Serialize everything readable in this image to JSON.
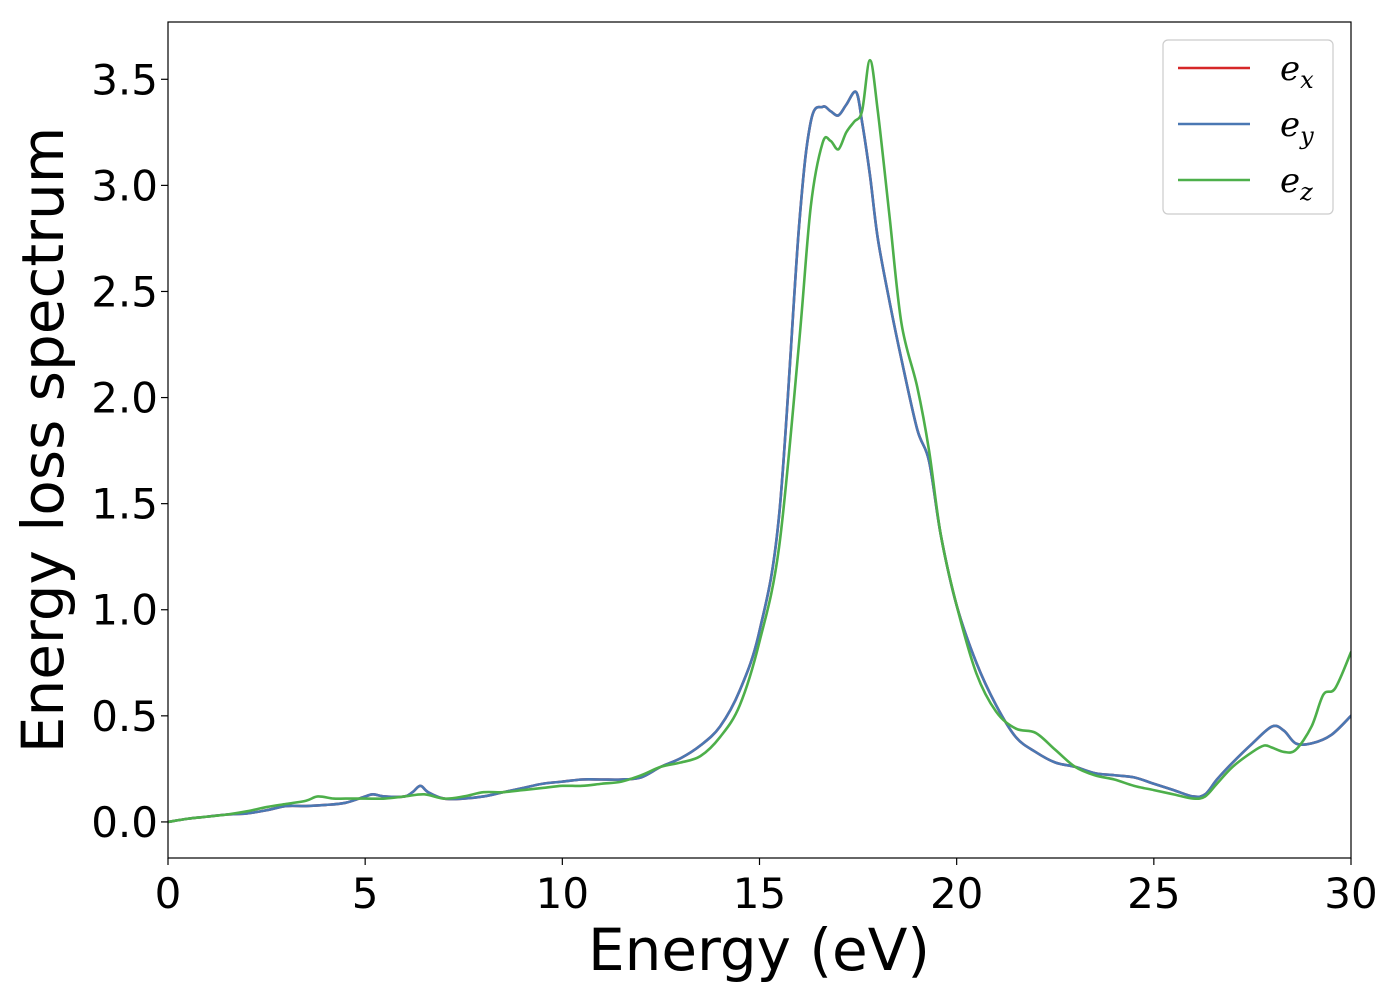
{
  "chart_data": {
    "type": "line",
    "title": "",
    "xlabel": "Energy (eV)",
    "ylabel": "Energy loss spectrum",
    "xlim": [
      0,
      30
    ],
    "ylim": [
      -0.17,
      3.77
    ],
    "xticks": [
      0,
      5,
      10,
      15,
      20,
      25,
      30
    ],
    "xtick_labels": [
      "0",
      "5",
      "10",
      "15",
      "20",
      "25",
      "30"
    ],
    "yticks": [
      0.0,
      0.5,
      1.0,
      1.5,
      2.0,
      2.5,
      3.0,
      3.5
    ],
    "ytick_labels": [
      "0.0",
      "0.5",
      "1.0",
      "1.5",
      "2.0",
      "2.5",
      "3.0",
      "3.5"
    ],
    "grid": false,
    "legend_position": "top-right",
    "series": [
      {
        "name": "e_x",
        "legend_base": "e",
        "legend_sub": "x",
        "color": "#d62728",
        "x": [
          0,
          0.5,
          1,
          1.5,
          2,
          2.5,
          3,
          3.5,
          4,
          4.5,
          5,
          5.2,
          5.5,
          6,
          6.2,
          6.4,
          6.6,
          7,
          7.5,
          8,
          8.5,
          9,
          9.5,
          10,
          10.5,
          11,
          11.5,
          12,
          12.5,
          13,
          13.5,
          14,
          14.5,
          15,
          15.5,
          16,
          16.3,
          16.6,
          16.8,
          17,
          17.2,
          17.45,
          17.6,
          17.8,
          18,
          18.3,
          18.6,
          19,
          19.3,
          19.6,
          20,
          20.5,
          21,
          21.5,
          22,
          22.5,
          23,
          23.5,
          24,
          24.5,
          25,
          25.5,
          26,
          26.3,
          26.6,
          27,
          27.5,
          28,
          28.3,
          28.6,
          29,
          29.5,
          30
        ],
        "y": [
          0.0,
          0.015,
          0.025,
          0.035,
          0.04,
          0.055,
          0.075,
          0.075,
          0.08,
          0.09,
          0.12,
          0.13,
          0.12,
          0.12,
          0.14,
          0.17,
          0.14,
          0.11,
          0.11,
          0.12,
          0.14,
          0.16,
          0.18,
          0.19,
          0.2,
          0.2,
          0.2,
          0.21,
          0.26,
          0.3,
          0.36,
          0.45,
          0.62,
          0.9,
          1.45,
          2.8,
          3.3,
          3.37,
          3.35,
          3.33,
          3.38,
          3.44,
          3.3,
          3.05,
          2.75,
          2.45,
          2.18,
          1.85,
          1.7,
          1.35,
          1.02,
          0.75,
          0.55,
          0.4,
          0.33,
          0.28,
          0.26,
          0.23,
          0.22,
          0.21,
          0.18,
          0.15,
          0.12,
          0.13,
          0.2,
          0.28,
          0.37,
          0.45,
          0.43,
          0.37,
          0.37,
          0.41,
          0.5
        ]
      },
      {
        "name": "e_y",
        "legend_base": "e",
        "legend_sub": "y",
        "color": "#4a78b3",
        "x": [
          0,
          0.5,
          1,
          1.5,
          2,
          2.5,
          3,
          3.5,
          4,
          4.5,
          5,
          5.2,
          5.5,
          6,
          6.2,
          6.4,
          6.6,
          7,
          7.5,
          8,
          8.5,
          9,
          9.5,
          10,
          10.5,
          11,
          11.5,
          12,
          12.5,
          13,
          13.5,
          14,
          14.5,
          15,
          15.5,
          16,
          16.3,
          16.6,
          16.8,
          17,
          17.2,
          17.45,
          17.6,
          17.8,
          18,
          18.3,
          18.6,
          19,
          19.3,
          19.6,
          20,
          20.5,
          21,
          21.5,
          22,
          22.5,
          23,
          23.5,
          24,
          24.5,
          25,
          25.5,
          26,
          26.3,
          26.6,
          27,
          27.5,
          28,
          28.3,
          28.6,
          29,
          29.5,
          30
        ],
        "y": [
          0.0,
          0.015,
          0.025,
          0.035,
          0.04,
          0.055,
          0.075,
          0.075,
          0.08,
          0.09,
          0.12,
          0.13,
          0.12,
          0.12,
          0.14,
          0.17,
          0.14,
          0.11,
          0.11,
          0.12,
          0.14,
          0.16,
          0.18,
          0.19,
          0.2,
          0.2,
          0.2,
          0.21,
          0.26,
          0.3,
          0.36,
          0.45,
          0.62,
          0.9,
          1.45,
          2.8,
          3.3,
          3.37,
          3.35,
          3.33,
          3.38,
          3.44,
          3.3,
          3.05,
          2.75,
          2.45,
          2.18,
          1.85,
          1.7,
          1.35,
          1.02,
          0.75,
          0.55,
          0.4,
          0.33,
          0.28,
          0.26,
          0.23,
          0.22,
          0.21,
          0.18,
          0.15,
          0.12,
          0.13,
          0.2,
          0.28,
          0.37,
          0.45,
          0.43,
          0.37,
          0.37,
          0.41,
          0.5
        ]
      },
      {
        "name": "e_z",
        "legend_base": "e",
        "legend_sub": "z",
        "color": "#4daf4a",
        "x": [
          0,
          0.5,
          1,
          1.5,
          2,
          2.5,
          3,
          3.5,
          3.8,
          4.2,
          4.5,
          5,
          5.5,
          6,
          6.5,
          7,
          7.5,
          8,
          8.5,
          9,
          9.5,
          10,
          10.5,
          11,
          11.5,
          12,
          12.5,
          13,
          13.5,
          14,
          14.5,
          15,
          15.5,
          16,
          16.3,
          16.6,
          16.8,
          17,
          17.2,
          17.4,
          17.6,
          17.8,
          18,
          18.3,
          18.6,
          19,
          19.3,
          19.6,
          20,
          20.5,
          21,
          21.5,
          22,
          22.5,
          23,
          23.5,
          24,
          24.5,
          25,
          25.5,
          26,
          26.3,
          26.6,
          27,
          27.5,
          27.8,
          28,
          28.3,
          28.6,
          29,
          29.3,
          29.6,
          30
        ],
        "y": [
          0.0,
          0.015,
          0.025,
          0.035,
          0.05,
          0.07,
          0.085,
          0.1,
          0.12,
          0.11,
          0.11,
          0.11,
          0.11,
          0.12,
          0.13,
          0.11,
          0.12,
          0.14,
          0.14,
          0.15,
          0.16,
          0.17,
          0.17,
          0.18,
          0.19,
          0.22,
          0.26,
          0.28,
          0.31,
          0.4,
          0.55,
          0.85,
          1.3,
          2.25,
          2.9,
          3.2,
          3.21,
          3.17,
          3.25,
          3.3,
          3.35,
          3.59,
          3.35,
          2.85,
          2.35,
          2.05,
          1.75,
          1.35,
          1.02,
          0.7,
          0.52,
          0.44,
          0.42,
          0.34,
          0.26,
          0.22,
          0.2,
          0.17,
          0.15,
          0.13,
          0.11,
          0.12,
          0.18,
          0.26,
          0.33,
          0.36,
          0.35,
          0.33,
          0.34,
          0.45,
          0.6,
          0.63,
          0.8
        ]
      }
    ]
  }
}
